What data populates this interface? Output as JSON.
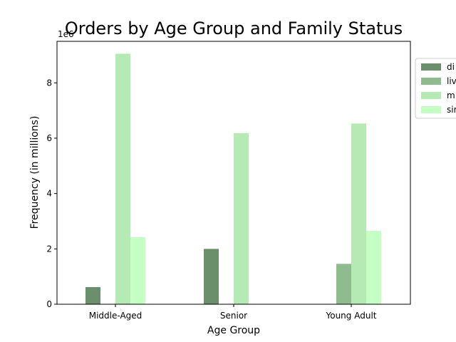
{
  "chart_data": {
    "type": "bar",
    "title": "Orders by Age Group and Family Status",
    "xlabel": "Age Group",
    "ylabel": "Frequency (in millions)",
    "offset_text": "1e6",
    "ylim": [
      0,
      9.5
    ],
    "yticks": [
      0,
      2,
      4,
      6,
      8
    ],
    "ytick_labels": [
      "0",
      "2",
      "4",
      "6",
      "8"
    ],
    "categories": [
      "Middle-Aged",
      "Senior",
      "Young Adult"
    ],
    "series": [
      {
        "name": "di",
        "color": "#6b8e6b",
        "values": [
          0.62,
          2.0,
          0
        ]
      },
      {
        "name": "liv",
        "color": "#8fbc8f",
        "values": [
          0,
          0,
          1.46
        ]
      },
      {
        "name": "m",
        "color": "#b5eab5",
        "values": [
          9.05,
          6.18,
          6.53
        ]
      },
      {
        "name": "sir",
        "color": "#c4ffc4",
        "values": [
          2.42,
          0,
          2.65
        ]
      }
    ],
    "legend_position": "outside-right-top",
    "grid": false
  }
}
